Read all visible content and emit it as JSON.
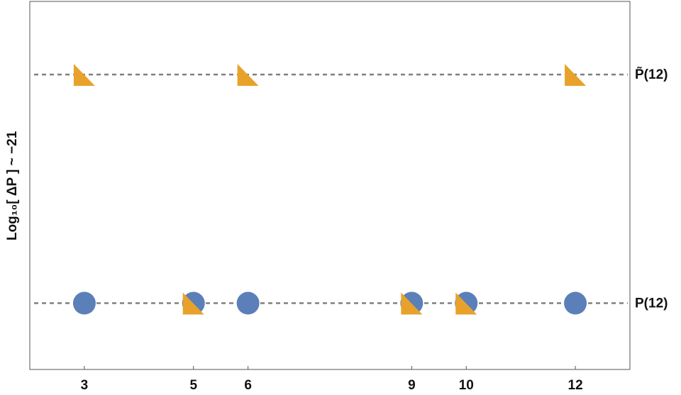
{
  "chart_data": {
    "type": "scatter",
    "ylabel": "Log₁₀[ ΔP ] ~ −21",
    "xlim": [
      2,
      13
    ],
    "xticks": [
      3,
      5,
      6,
      9,
      10,
      12
    ],
    "ylim": [
      -0.29,
      1.32
    ],
    "yticks": [
      {
        "value": 0,
        "label": "P(12)"
      },
      {
        "value": 1,
        "label": "P̃(12)"
      }
    ],
    "series": [
      {
        "color": "#5b7fb8",
        "marker": "circle",
        "x": [
          3,
          5,
          6,
          9,
          10,
          12
        ],
        "values": [
          0,
          0,
          0,
          0,
          0,
          0
        ]
      },
      {
        "color": "#e8a22b",
        "marker": "triangle",
        "x": [
          3,
          6,
          12,
          5,
          9,
          10
        ],
        "values": [
          1,
          1,
          1,
          0,
          0,
          0
        ]
      }
    ]
  }
}
